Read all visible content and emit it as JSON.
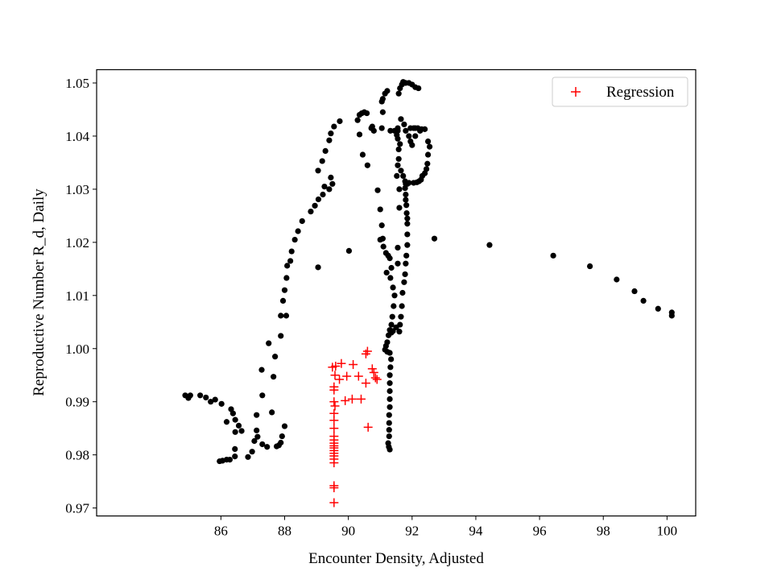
{
  "chart_data": {
    "type": "scatter",
    "xlabel": "Encounter Density, Adjusted",
    "ylabel": "Reproductive Number R_d, Daily",
    "xlim": [
      82.1,
      100.9
    ],
    "ylim": [
      0.9685,
      1.0525
    ],
    "xticks": [
      86,
      88,
      90,
      92,
      94,
      96,
      98,
      100
    ],
    "yticks": [
      0.97,
      0.98,
      0.99,
      1.0,
      1.01,
      1.02,
      1.03,
      1.04,
      1.05
    ],
    "ytick_labels": [
      "0.97",
      "0.98",
      "0.99",
      "1.00",
      "1.01",
      "1.02",
      "1.03",
      "1.04",
      "1.05"
    ],
    "grid": false,
    "legend": {
      "position": "upper-right",
      "entries": [
        "Regression"
      ]
    },
    "series": [
      {
        "marker": "dot",
        "color": "#000000",
        "points": [
          [
            84.88,
            0.9912
          ],
          [
            84.98,
            0.9907
          ],
          [
            85.04,
            0.9912
          ],
          [
            85.35,
            0.9912
          ],
          [
            85.53,
            0.9908
          ],
          [
            85.68,
            0.99
          ],
          [
            85.82,
            0.9904
          ],
          [
            86.02,
            0.9896
          ],
          [
            86.18,
            0.9862
          ],
          [
            86.32,
            0.9886
          ],
          [
            86.38,
            0.9878
          ],
          [
            86.45,
            0.9866
          ],
          [
            86.56,
            0.9855
          ],
          [
            86.65,
            0.9845
          ],
          [
            86.45,
            0.9843
          ],
          [
            86.44,
            0.9811
          ],
          [
            86.44,
            0.9797
          ],
          [
            86.28,
            0.9791
          ],
          [
            86.18,
            0.9791
          ],
          [
            86.05,
            0.9789
          ],
          [
            85.96,
            0.9788
          ],
          [
            86.85,
            0.9796
          ],
          [
            86.98,
            0.9806
          ],
          [
            87.05,
            0.9826
          ],
          [
            87.15,
            0.9834
          ],
          [
            87.12,
            0.9846
          ],
          [
            87.12,
            0.9875
          ],
          [
            87.3,
            0.982
          ],
          [
            87.45,
            0.9815
          ],
          [
            87.3,
            0.9912
          ],
          [
            87.28,
            0.996
          ],
          [
            87.5,
            1.001
          ],
          [
            87.6,
            0.988
          ],
          [
            87.65,
            0.9947
          ],
          [
            87.7,
            0.9985
          ],
          [
            87.75,
            0.9816
          ],
          [
            87.82,
            0.9818
          ],
          [
            87.88,
            0.9823
          ],
          [
            87.92,
            0.9835
          ],
          [
            88.0,
            0.9854
          ],
          [
            87.88,
            1.0024
          ],
          [
            87.88,
            1.0062
          ],
          [
            87.95,
            1.009
          ],
          [
            88.0,
            1.011
          ],
          [
            88.05,
            1.0062
          ],
          [
            88.06,
            1.0133
          ],
          [
            88.08,
            1.0156
          ],
          [
            88.18,
            1.0165
          ],
          [
            88.22,
            1.0183
          ],
          [
            88.32,
            1.0205
          ],
          [
            88.42,
            1.0221
          ],
          [
            88.55,
            1.024
          ],
          [
            88.82,
            1.0258
          ],
          [
            88.95,
            1.0269
          ],
          [
            89.06,
            1.0281
          ],
          [
            89.2,
            1.029
          ],
          [
            89.25,
            1.0305
          ],
          [
            89.4,
            1.03
          ],
          [
            89.5,
            1.031
          ],
          [
            89.45,
            1.0322
          ],
          [
            89.05,
            1.0335
          ],
          [
            89.18,
            1.0353
          ],
          [
            89.28,
            1.0372
          ],
          [
            89.4,
            1.0392
          ],
          [
            89.45,
            1.0405
          ],
          [
            89.55,
            1.0418
          ],
          [
            89.73,
            1.0428
          ],
          [
            89.05,
            1.0153
          ],
          [
            90.02,
            1.0184
          ],
          [
            90.29,
            1.043
          ],
          [
            90.35,
            1.044
          ],
          [
            90.42,
            1.0443
          ],
          [
            90.5,
            1.0445
          ],
          [
            90.58,
            1.0443
          ],
          [
            90.35,
            1.0403
          ],
          [
            90.45,
            1.0365
          ],
          [
            90.6,
            1.0345
          ],
          [
            90.72,
            1.0415
          ],
          [
            90.75,
            1.0418
          ],
          [
            90.8,
            1.041
          ],
          [
            90.92,
            1.0298
          ],
          [
            91.0,
            1.0262
          ],
          [
            91.05,
            1.0232
          ],
          [
            91.0,
            1.0205
          ],
          [
            91.08,
            1.0207
          ],
          [
            91.1,
            1.0192
          ],
          [
            91.18,
            1.018
          ],
          [
            91.25,
            1.0175
          ],
          [
            91.3,
            1.017
          ],
          [
            91.35,
            1.0152
          ],
          [
            91.2,
            1.0143
          ],
          [
            91.32,
            1.0133
          ],
          [
            91.4,
            1.0115
          ],
          [
            91.45,
            1.01
          ],
          [
            91.42,
            1.008
          ],
          [
            91.38,
            1.006
          ],
          [
            91.35,
            1.0045
          ],
          [
            91.3,
            1.0035
          ],
          [
            91.26,
            1.0025
          ],
          [
            91.22,
            1.0012
          ],
          [
            91.18,
            1.0005
          ],
          [
            91.15,
            0.9998
          ],
          [
            91.22,
            0.9994
          ],
          [
            91.3,
            0.9992
          ],
          [
            91.34,
            0.998
          ],
          [
            91.32,
            0.9965
          ],
          [
            91.3,
            0.995
          ],
          [
            91.3,
            0.9935
          ],
          [
            91.3,
            0.992
          ],
          [
            91.3,
            0.9905
          ],
          [
            91.3,
            0.989
          ],
          [
            91.28,
            0.9875
          ],
          [
            91.28,
            0.986
          ],
          [
            91.28,
            0.9847
          ],
          [
            91.28,
            0.9835
          ],
          [
            91.25,
            0.9822
          ],
          [
            91.27,
            0.9815
          ],
          [
            91.3,
            0.981
          ],
          [
            91.05,
            1.0415
          ],
          [
            91.08,
            1.0445
          ],
          [
            91.05,
            1.0465
          ],
          [
            91.08,
            1.047
          ],
          [
            91.15,
            1.048
          ],
          [
            91.22,
            1.0485
          ],
          [
            91.32,
            1.041
          ],
          [
            91.45,
            1.041
          ],
          [
            91.55,
            1.041
          ],
          [
            91.35,
            1.003
          ],
          [
            91.4,
            1.0033
          ],
          [
            91.5,
            1.004
          ],
          [
            91.55,
            1.016
          ],
          [
            91.55,
            1.019
          ],
          [
            91.6,
            1.0265
          ],
          [
            91.6,
            1.03
          ],
          [
            91.52,
            1.0325
          ],
          [
            91.55,
            1.0345
          ],
          [
            91.58,
            1.0357
          ],
          [
            91.58,
            1.0375
          ],
          [
            91.62,
            1.0385
          ],
          [
            91.55,
            1.0395
          ],
          [
            91.52,
            1.0402
          ],
          [
            91.55,
            1.0415
          ],
          [
            91.58,
            1.048
          ],
          [
            91.62,
            1.049
          ],
          [
            91.68,
            1.0497
          ],
          [
            91.72,
            1.0502
          ],
          [
            91.8,
            1.05
          ],
          [
            91.9,
            1.05
          ],
          [
            92.0,
            1.0497
          ],
          [
            92.1,
            1.0492
          ],
          [
            92.2,
            1.049
          ],
          [
            91.65,
            1.0432
          ],
          [
            91.75,
            1.0422
          ],
          [
            91.8,
            1.041
          ],
          [
            91.65,
            1.0335
          ],
          [
            91.72,
            1.0325
          ],
          [
            91.78,
            1.0315
          ],
          [
            91.8,
            1.031
          ],
          [
            91.85,
            1.031
          ],
          [
            91.9,
            1.0312
          ],
          [
            91.78,
            1.0302
          ],
          [
            91.8,
            1.029
          ],
          [
            91.8,
            1.028
          ],
          [
            91.82,
            1.027
          ],
          [
            91.83,
            1.0255
          ],
          [
            91.85,
            1.0245
          ],
          [
            91.85,
            1.0235
          ],
          [
            91.85,
            1.0215
          ],
          [
            91.85,
            1.0195
          ],
          [
            91.82,
            1.0175
          ],
          [
            91.8,
            1.016
          ],
          [
            91.78,
            1.014
          ],
          [
            91.75,
            1.0125
          ],
          [
            91.7,
            1.0105
          ],
          [
            91.68,
            1.008
          ],
          [
            91.65,
            1.006
          ],
          [
            91.62,
            1.0045
          ],
          [
            91.6,
            1.0032
          ],
          [
            91.9,
            1.04
          ],
          [
            91.95,
            1.039
          ],
          [
            92.0,
            1.0383
          ],
          [
            91.95,
            1.0415
          ],
          [
            92.05,
            1.0415
          ],
          [
            92.1,
            1.0415
          ],
          [
            92.18,
            1.0415
          ],
          [
            92.25,
            1.041
          ],
          [
            92.3,
            1.0413
          ],
          [
            92.4,
            1.0413
          ],
          [
            92.5,
            1.039
          ],
          [
            92.55,
            1.038
          ],
          [
            92.5,
            1.0365
          ],
          [
            92.48,
            1.0348
          ],
          [
            92.45,
            1.0338
          ],
          [
            92.4,
            1.033
          ],
          [
            92.32,
            1.0325
          ],
          [
            92.28,
            1.0318
          ],
          [
            92.22,
            1.0315
          ],
          [
            92.15,
            1.0313
          ],
          [
            92.05,
            1.0312
          ],
          [
            92.1,
            1.04
          ],
          [
            92.7,
            1.0207
          ],
          [
            94.43,
            1.0195
          ],
          [
            96.43,
            1.0175
          ],
          [
            97.58,
            1.0155
          ],
          [
            98.42,
            1.013
          ],
          [
            98.98,
            1.0108
          ],
          [
            99.26,
            1.009
          ],
          [
            99.72,
            1.0075
          ],
          [
            100.15,
            1.0068
          ],
          [
            100.15,
            1.0062
          ]
        ]
      },
      {
        "name": "Regression",
        "marker": "plus",
        "color": "#ff0000",
        "points": [
          [
            89.5,
            0.9965
          ],
          [
            89.6,
            0.9967
          ],
          [
            89.78,
            0.9972
          ],
          [
            90.15,
            0.997
          ],
          [
            89.58,
            0.995
          ],
          [
            89.72,
            0.9942
          ],
          [
            89.95,
            0.9948
          ],
          [
            90.32,
            0.9948
          ],
          [
            90.55,
            0.9935
          ],
          [
            89.55,
            0.9928
          ],
          [
            89.55,
            0.9922
          ],
          [
            89.55,
            0.99
          ],
          [
            89.58,
            0.9892
          ],
          [
            89.9,
            0.9902
          ],
          [
            90.12,
            0.9905
          ],
          [
            90.4,
            0.9905
          ],
          [
            90.55,
            0.999
          ],
          [
            90.6,
            0.9995
          ],
          [
            90.75,
            0.9962
          ],
          [
            90.8,
            0.9955
          ],
          [
            90.85,
            0.9945
          ],
          [
            90.9,
            0.9942
          ],
          [
            90.62,
            0.9852
          ],
          [
            89.55,
            0.9878
          ],
          [
            89.55,
            0.9865
          ],
          [
            89.55,
            0.985
          ],
          [
            89.55,
            0.9835
          ],
          [
            89.55,
            0.9828
          ],
          [
            89.55,
            0.9822
          ],
          [
            89.55,
            0.9817
          ],
          [
            89.55,
            0.9813
          ],
          [
            89.55,
            0.9808
          ],
          [
            89.55,
            0.9803
          ],
          [
            89.55,
            0.9798
          ],
          [
            89.55,
            0.9792
          ],
          [
            89.55,
            0.9785
          ],
          [
            89.55,
            0.9742
          ],
          [
            89.55,
            0.9738
          ],
          [
            89.55,
            0.971
          ]
        ]
      }
    ]
  }
}
